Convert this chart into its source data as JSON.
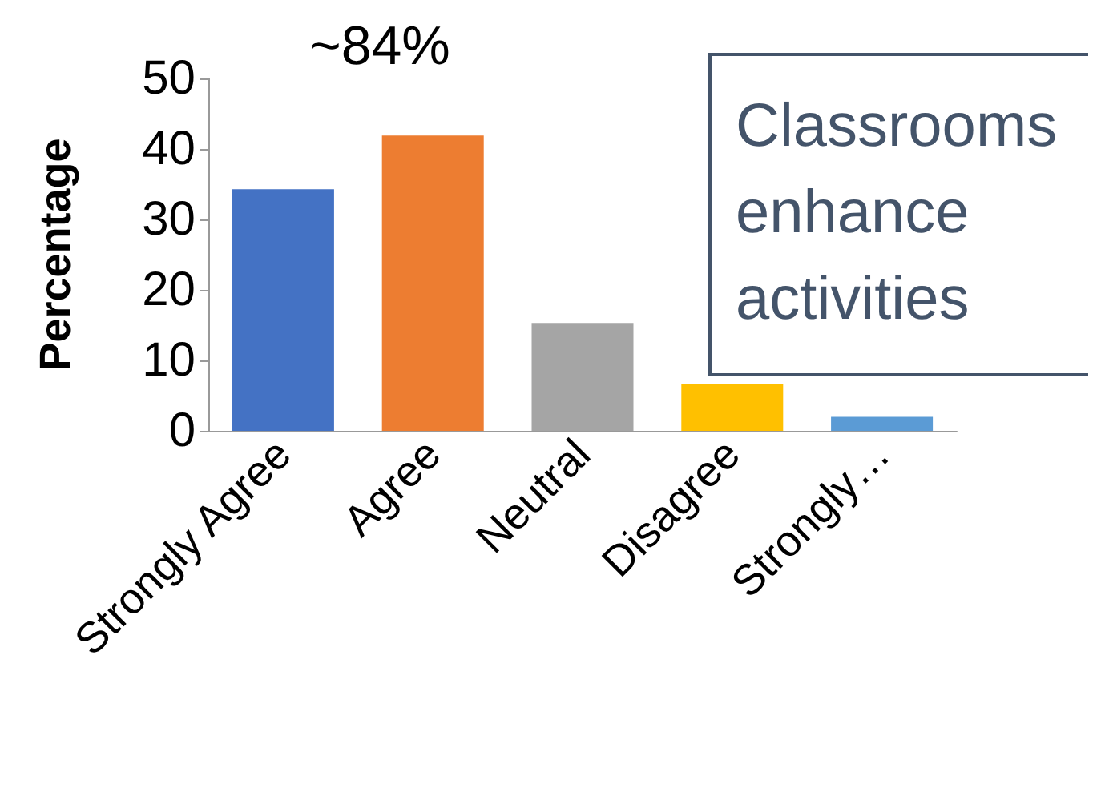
{
  "chart_data": {
    "type": "bar",
    "ylabel": "Percentage",
    "categories": [
      "Strongly Agree",
      "Agree",
      "Neutral",
      "Disagree",
      "Strongly…"
    ],
    "values": [
      34.3,
      41.9,
      15.3,
      6.6,
      2.0
    ],
    "colors": [
      "#4472c4",
      "#ed7d31",
      "#a5a5a5",
      "#ffc000",
      "#5b9bd5"
    ],
    "ylim": [
      0,
      50
    ],
    "yticks": [
      0,
      10,
      20,
      30,
      40,
      50
    ],
    "grid": false,
    "annotations": [
      "~84%",
      "Classrooms\nenhance\nactivities"
    ]
  }
}
